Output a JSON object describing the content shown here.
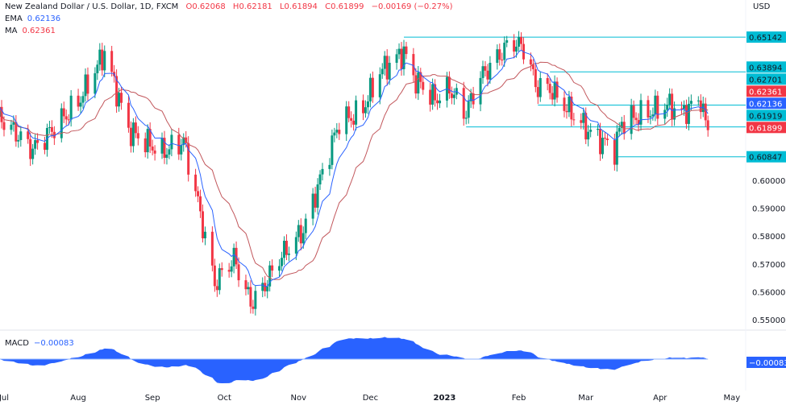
{
  "header": {
    "symbol": "New Zealand Dollar / U.S. Dollar, 1D, FXCM",
    "open": "O0.62068",
    "high": "H0.62181",
    "low": "L0.61894",
    "close": "C0.61899",
    "change": "−0.00169 (−0.27%)",
    "ema_label": "EMA",
    "ema_value": "0.62136",
    "ma_label": "MA",
    "ma_value": "0.62361"
  },
  "macd": {
    "label": "MACD",
    "value": "−0.00083",
    "axis_badge": "−0.00083"
  },
  "colors": {
    "up": "#089981",
    "down": "#f23645",
    "ema": "#2962ff",
    "ma": "#c2575c",
    "levels": "#00bcd4",
    "macd": "#2962ff"
  },
  "chart_data": {
    "type": "candlestick",
    "currency_label": "USD",
    "y_ticks": [
      "0.60000",
      "0.59000",
      "0.58000",
      "0.57000",
      "0.56000",
      "0.55000"
    ],
    "ylim": [
      0.545,
      0.66
    ],
    "x_ticks": [
      "Jul",
      "Aug",
      "Sep",
      "Oct",
      "Nov",
      "Dec",
      "2023",
      "Feb",
      "Mar",
      "Apr",
      "May"
    ],
    "close_path": [
      [
        "2022-06-29",
        0.6228
      ],
      [
        "2022-07-13",
        0.611
      ],
      [
        "2022-08-01",
        0.628
      ],
      [
        "2022-08-12",
        0.646
      ],
      [
        "2022-08-22",
        0.618
      ],
      [
        "2022-09-05",
        0.61
      ],
      [
        "2022-09-14",
        0.614
      ],
      [
        "2022-09-20",
        0.592
      ],
      [
        "2022-09-27",
        0.563
      ],
      [
        "2022-10-05",
        0.572
      ],
      [
        "2022-10-12",
        0.556
      ],
      [
        "2022-10-17",
        0.561
      ],
      [
        "2022-10-24",
        0.572
      ],
      [
        "2022-11-03",
        0.582
      ],
      [
        "2022-11-08",
        0.595
      ],
      [
        "2022-11-18",
        0.621
      ],
      [
        "2022-11-27",
        0.624
      ],
      [
        "2022-12-05",
        0.639
      ],
      [
        "2022-12-15",
        0.646
      ],
      [
        "2022-12-19",
        0.637
      ],
      [
        "2022-12-28",
        0.629
      ],
      [
        "2023-01-03",
        0.633
      ],
      [
        "2023-01-10",
        0.624
      ],
      [
        "2023-01-15",
        0.636
      ],
      [
        "2023-01-22",
        0.643
      ],
      [
        "2023-01-29",
        0.65
      ],
      [
        "2023-02-04",
        0.647
      ],
      [
        "2023-02-08",
        0.634
      ],
      [
        "2023-02-14",
        0.633
      ],
      [
        "2023-02-21",
        0.626
      ],
      [
        "2023-03-03",
        0.617
      ],
      [
        "2023-03-13",
        0.611
      ],
      [
        "2023-03-16",
        0.621
      ],
      [
        "2023-03-26",
        0.624
      ],
      [
        "2023-04-05",
        0.627
      ],
      [
        "2023-04-10",
        0.624
      ],
      [
        "2023-04-18",
        0.629
      ],
      [
        "2023-04-20",
        0.62
      ],
      [
        "2023-04-22",
        0.61899
      ]
    ],
    "levels": [
      {
        "value": 0.65142,
        "label": "0.65142",
        "from": "2022-12-15"
      },
      {
        "value": 0.63894,
        "label": "0.63894",
        "from": "2023-02-14"
      },
      {
        "value": 0.62701,
        "label": "0.62701",
        "from": "2023-02-09"
      },
      {
        "value": 0.61919,
        "label": "0.61919",
        "from": "2023-01-10"
      },
      {
        "value": 0.60847,
        "label": "0.60847",
        "from": "2023-03-13"
      }
    ],
    "price_badges": [
      {
        "label": "0.62361",
        "value": 0.62361,
        "kind": "ma"
      },
      {
        "label": "0.62136",
        "value": 0.62136,
        "kind": "ema"
      },
      {
        "label": "0.61899",
        "value": 0.61899,
        "kind": "last"
      }
    ],
    "macd_last": -0.00083
  }
}
